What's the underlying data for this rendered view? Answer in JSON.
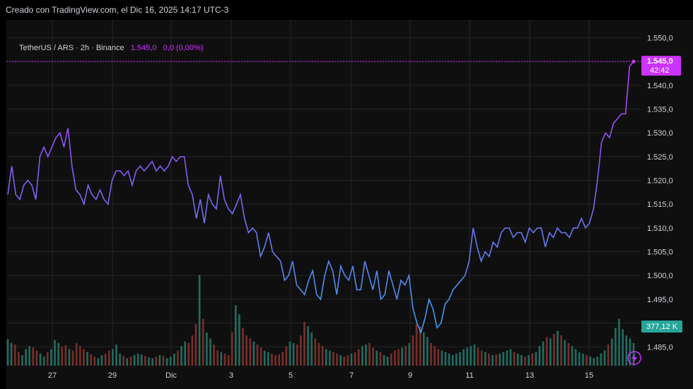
{
  "header": {
    "created": "Creado con TradingView.com, el Dic 16, 2025 14:17 UTC-3"
  },
  "legend": {
    "symbol": "TetherUS / ARS · 2h · Binance",
    "price": "1.545,0",
    "change": "0,0 (0,00%)"
  },
  "colors": {
    "line_start": "#5b8df6",
    "line_end": "#c03aff",
    "up_volume": "#1f6e62",
    "down_volume": "#7a2f2a",
    "price_tag": "#cc33ff",
    "volume_tag": "#26a69a"
  },
  "price_tag": {
    "price": "1.545,0",
    "countdown": "42:42"
  },
  "volume_tag": {
    "value": "377,12 K"
  },
  "chart_data": {
    "type": "line",
    "ylim": [
      1484,
      1552
    ],
    "y_ticks": [
      "1.550,0",
      "1.545,0",
      "1.540,0",
      "1.535,0",
      "1.530,0",
      "1.525,0",
      "1.520,0",
      "1.515,0",
      "1.510,0",
      "1.505,0",
      "1.500,0",
      "1.495,0",
      "1.490,0",
      "1.485,0"
    ],
    "x_ticks": [
      "27",
      "29",
      "Dic",
      "3",
      "5",
      "7",
      "9",
      "11",
      "13",
      "15"
    ],
    "series": [
      {
        "values": [
          1517,
          1523,
          1517,
          1516,
          1519,
          1520,
          1519,
          1516,
          1525,
          1527,
          1525,
          1527,
          1529,
          1530,
          1527,
          1531,
          1523,
          1518,
          1517,
          1515,
          1519,
          1517,
          1516,
          1518,
          1516,
          1515,
          1520,
          1522,
          1522,
          1521,
          1522,
          1519,
          1522,
          1523,
          1522,
          1523,
          1524,
          1522,
          1523,
          1522,
          1523,
          1525,
          1524,
          1525,
          1525,
          1519,
          1517,
          1512,
          1516,
          1511,
          1517,
          1515,
          1514,
          1521,
          1516,
          1514,
          1513,
          1515,
          1517,
          1512,
          1509,
          1510,
          1509,
          1504,
          1506,
          1509,
          1505,
          1504,
          1503,
          1499,
          1500,
          1503,
          1498,
          1497,
          1496,
          1499,
          1501,
          1496,
          1495,
          1500,
          1503,
          1501,
          1496,
          1502,
          1500,
          1499,
          1502,
          1497,
          1497,
          1503,
          1500,
          1497,
          1501,
          1495,
          1496,
          1501,
          1498,
          1495,
          1499,
          1498,
          1500,
          1493,
          1490,
          1488,
          1491,
          1495,
          1493,
          1489,
          1490,
          1494,
          1495,
          1497,
          1498,
          1499,
          1500,
          1503,
          1510,
          1506,
          1503,
          1505,
          1504,
          1507,
          1506,
          1509,
          1510,
          1510,
          1508,
          1509,
          1509,
          1507,
          1510,
          1509,
          1510,
          1510,
          1506,
          1509,
          1508,
          1510,
          1509,
          1509,
          1508,
          1510,
          1510,
          1512,
          1510,
          1511,
          1514,
          1520,
          1528,
          1530,
          1529,
          1532,
          1533,
          1534,
          1534,
          1544,
          1545
        ]
      }
    ],
    "volume": [
      35,
      30,
      28,
      18,
      14,
      22,
      26,
      24,
      20,
      16,
      12,
      18,
      22,
      34,
      30,
      25,
      27,
      22,
      20,
      30,
      26,
      22,
      18,
      15,
      12,
      10,
      14,
      16,
      20,
      22,
      28,
      16,
      13,
      10,
      12,
      14,
      16,
      15,
      13,
      11,
      10,
      12,
      14,
      13,
      10,
      12,
      16,
      20,
      26,
      32,
      30,
      40,
      55,
      120,
      62,
      44,
      36,
      28,
      20,
      18,
      16,
      14,
      44,
      80,
      68,
      50,
      40,
      36,
      32,
      28,
      24,
      20,
      18,
      16,
      14,
      15,
      18,
      26,
      32,
      30,
      28,
      40,
      58,
      52,
      44,
      36,
      30,
      26,
      22,
      20,
      18,
      16,
      14,
      12,
      14,
      16,
      18,
      22,
      26,
      28,
      30,
      24,
      20,
      18,
      14,
      12,
      16,
      20,
      22,
      24,
      26,
      30,
      40,
      55,
      52,
      44,
      38,
      30,
      26,
      22,
      20,
      18,
      16,
      14,
      16,
      18,
      22,
      24,
      26,
      28,
      24,
      20,
      18,
      16,
      14,
      15,
      16,
      18,
      20,
      22,
      18,
      16,
      14,
      12,
      14,
      16,
      18,
      26,
      32,
      38,
      36,
      42,
      46,
      40,
      34,
      30,
      26,
      22,
      18,
      16,
      14,
      12,
      10,
      12,
      16,
      20,
      28,
      36,
      50,
      62,
      48,
      40,
      36,
      30
    ]
  }
}
